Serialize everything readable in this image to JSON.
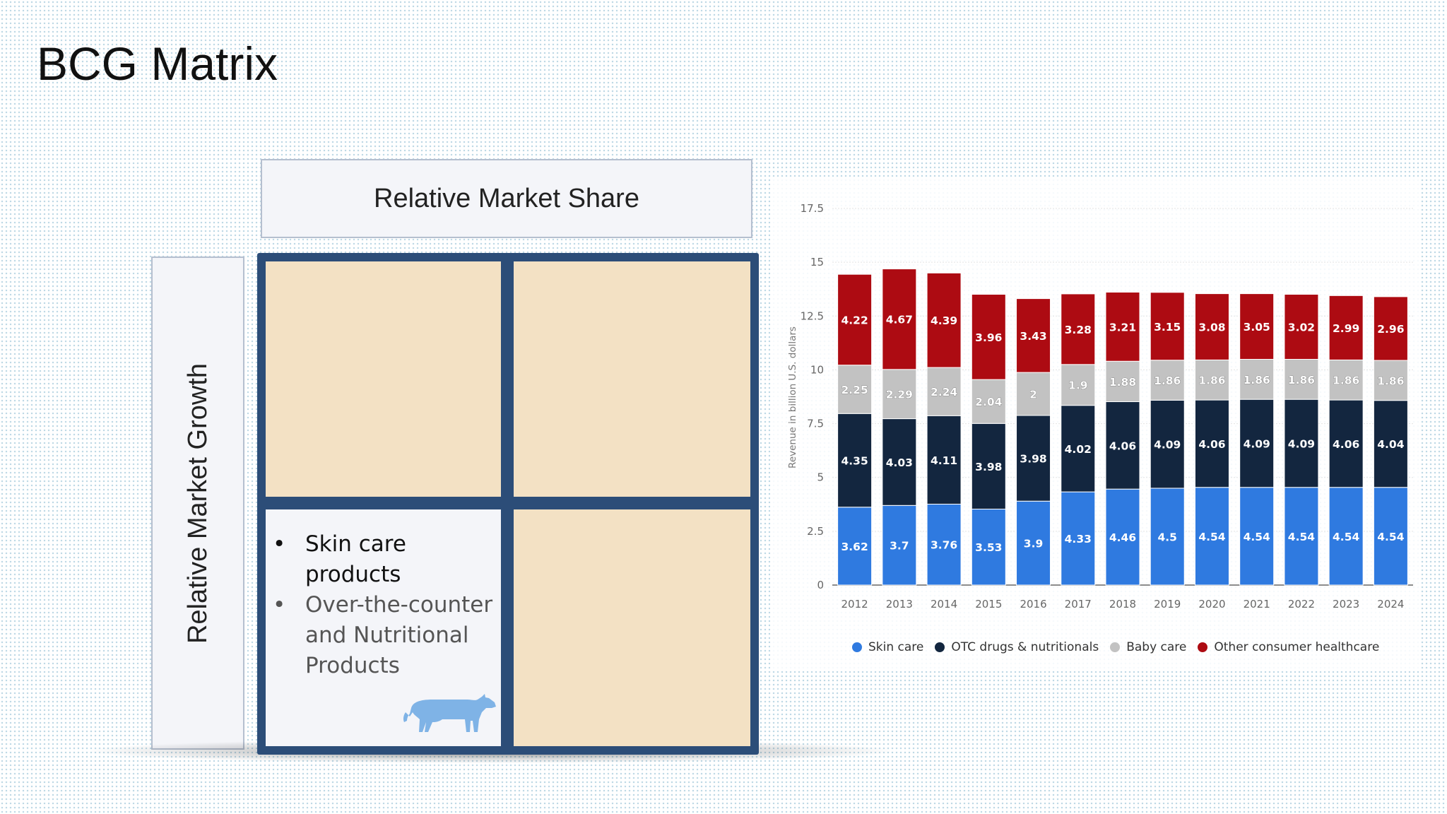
{
  "slide": {
    "title": "BCG Matrix",
    "matrix": {
      "x_label": "Relative Market Share",
      "y_label": "Relative Market Growth",
      "cash_cow_items": [
        "Skin care products",
        "Over-the-counter and Nutritional Products"
      ],
      "bullet_glyph": "•",
      "cash_cow_icon": "cow-icon",
      "colors": {
        "frame": "#2c4d78",
        "cell": "#f3e1c4",
        "cow": "#7fb3e6"
      }
    }
  },
  "chart_data": {
    "type": "bar",
    "stacked": true,
    "categories": [
      "2012",
      "2013",
      "2014",
      "2015",
      "2016",
      "2017",
      "2018",
      "2019",
      "2020",
      "2021",
      "2022",
      "2023",
      "2024"
    ],
    "series": [
      {
        "name": "Skin care",
        "color": "#2f7ae0",
        "values": [
          3.62,
          3.7,
          3.76,
          3.53,
          3.9,
          4.33,
          4.46,
          4.5,
          4.54,
          4.54,
          4.54,
          4.54,
          4.54
        ]
      },
      {
        "name": "OTC drugs & nutritionals",
        "color": "#13263f",
        "values": [
          4.35,
          4.03,
          4.11,
          3.98,
          3.98,
          4.02,
          4.06,
          4.09,
          4.06,
          4.09,
          4.09,
          4.06,
          4.04
        ]
      },
      {
        "name": "Baby care",
        "color": "#c2c2c2",
        "values": [
          2.25,
          2.29,
          2.24,
          2.04,
          2,
          1.9,
          1.88,
          1.86,
          1.86,
          1.86,
          1.86,
          1.86,
          1.86
        ]
      },
      {
        "name": "Other consumer healthcare",
        "color": "#ad0b12",
        "values": [
          4.22,
          4.67,
          4.39,
          3.96,
          3.43,
          3.28,
          3.21,
          3.15,
          3.08,
          3.05,
          3.02,
          2.99,
          2.96
        ]
      }
    ],
    "ylabel": "Revenue in billion U.S. dollars",
    "ylim": [
      0,
      17.5
    ],
    "yticks": [
      0,
      2.5,
      5,
      7.5,
      10,
      12.5,
      15,
      17.5
    ],
    "ytick_labels": [
      "0",
      "2.5",
      "5",
      "7.5",
      "10",
      "12.5",
      "15",
      "17.5"
    ],
    "grid": "horizontal",
    "legend": "bottom"
  }
}
